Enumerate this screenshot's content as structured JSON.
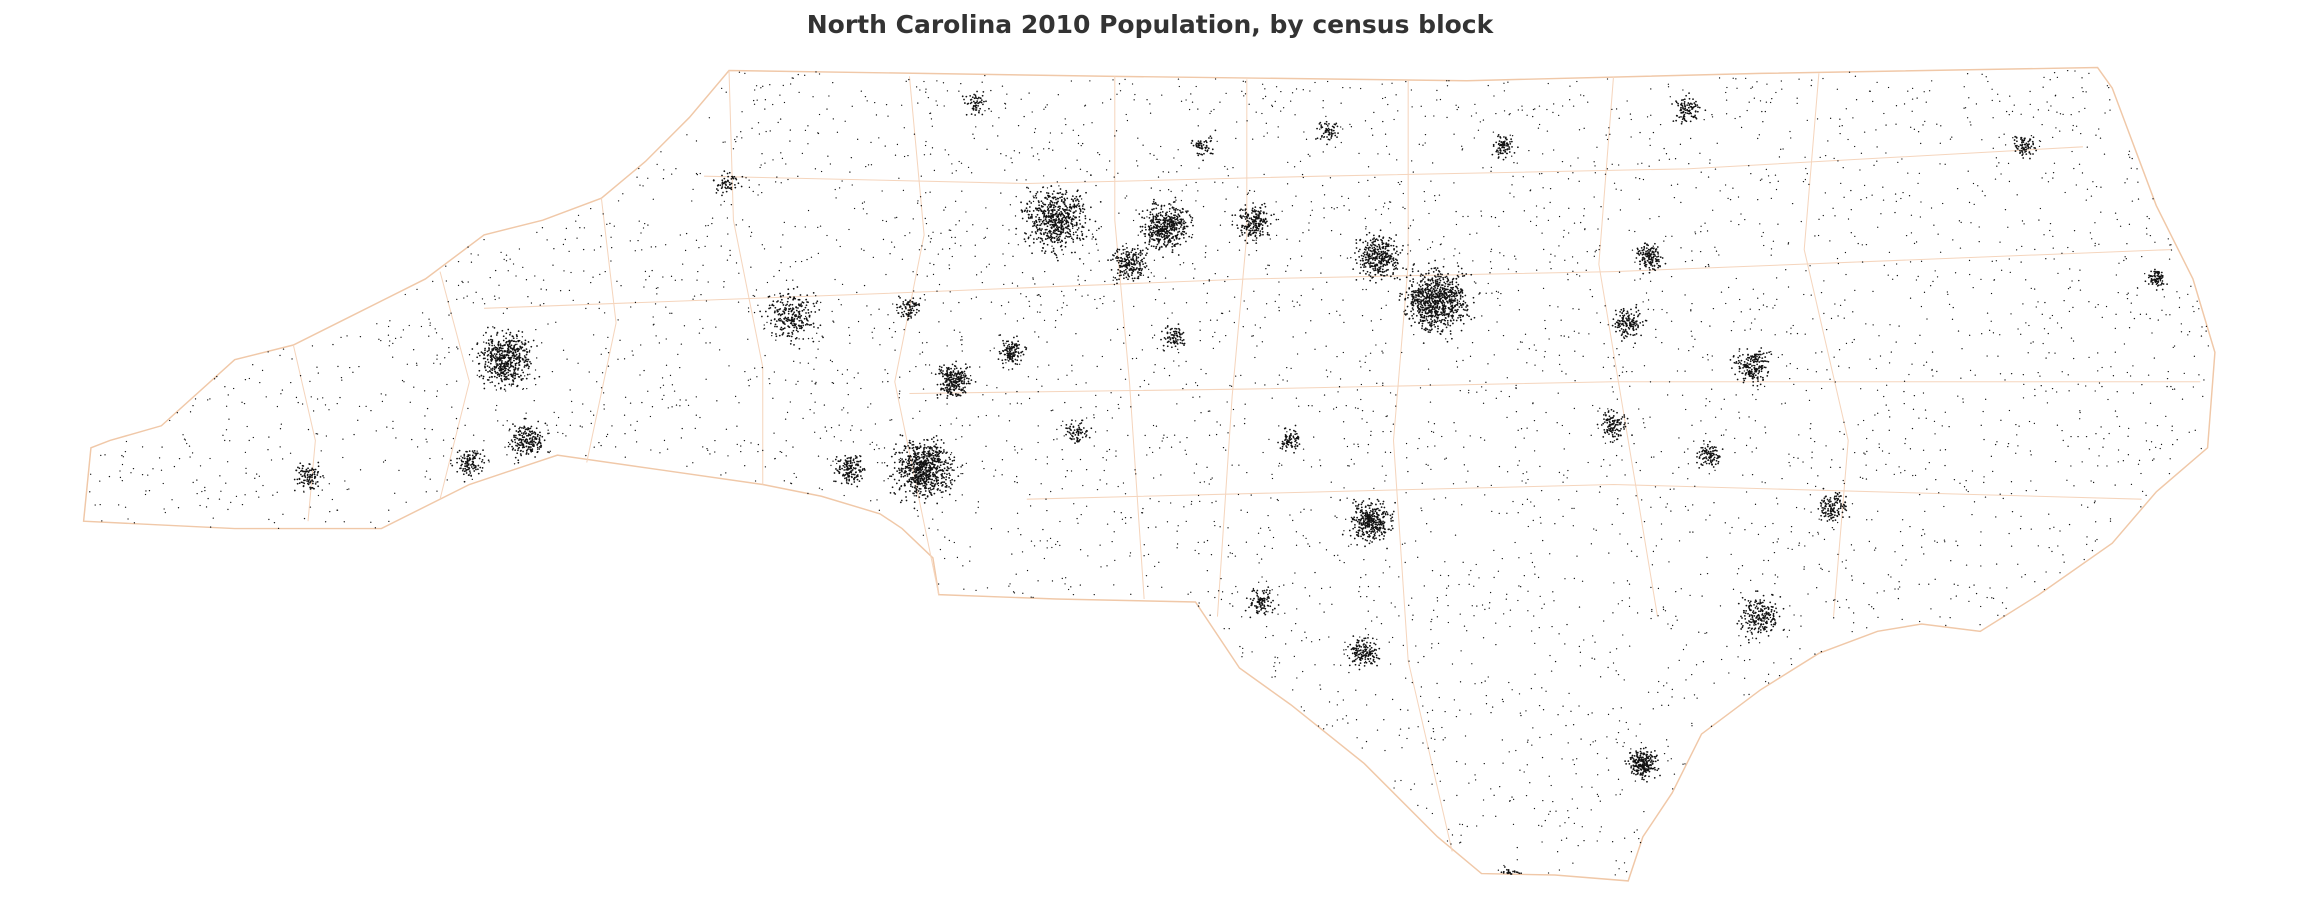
{
  "header": {
    "title": "North Carolina 2010 Population, by census block"
  }
}
